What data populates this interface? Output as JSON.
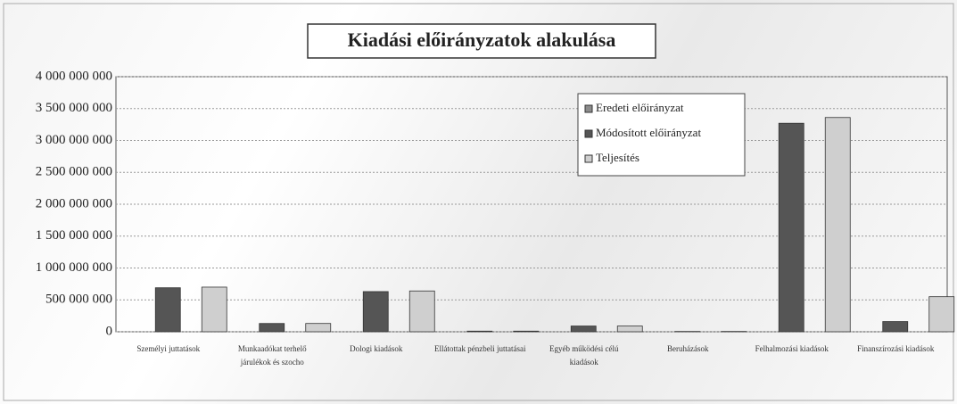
{
  "chart_data": {
    "type": "bar",
    "title": "Kiadási előirányzatok alakulása",
    "categories": [
      "Személyi juttatások",
      "Munkaadókat terhelő járulékok és szocho",
      "Dologi kiadások",
      "Ellátottak pénzbeli juttatásai",
      "Egyéb működési célú kiadások",
      "Beruházások",
      "Felhalmozási kiadások",
      "Finanszírozási kiadások"
    ],
    "series": [
      {
        "name": "Eredeti előirányzat",
        "color": "#8c8c8c",
        "values": [
          null,
          null,
          null,
          null,
          null,
          null,
          null,
          null
        ]
      },
      {
        "name": "Módosított előirányzat",
        "color": "#555555",
        "values": [
          690000000,
          130000000,
          630000000,
          10000000,
          90000000,
          5000000,
          3270000000,
          160000000
        ]
      },
      {
        "name": "Teljesítés",
        "color": "#cfcfcf",
        "values": [
          700000000,
          130000000,
          640000000,
          10000000,
          90000000,
          5000000,
          3360000000,
          550000000
        ]
      }
    ],
    "ylim": [
      0,
      4000000000
    ],
    "yticks": [
      0,
      {
        "value": 500000000,
        "label": "500 000 000"
      },
      {
        "value": 1000000000,
        "label": "1 000 000 000"
      },
      {
        "value": 1500000000,
        "label": "1 500 000 000"
      },
      {
        "value": 2000000000,
        "label": "2 000 000 000"
      },
      {
        "value": 2500000000,
        "label": "2 500 000 000"
      },
      {
        "value": 3000000000,
        "label": "3 000 000 000"
      },
      {
        "value": 3500000000,
        "label": "3 500 000 000"
      },
      {
        "value": 4000000000,
        "label": "4 000 000 000"
      }
    ],
    "grid": true,
    "legend": "top-right"
  }
}
